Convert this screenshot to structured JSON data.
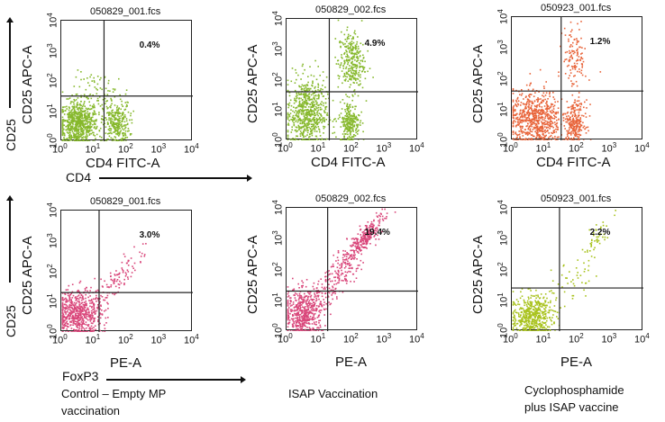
{
  "outer_labels": {
    "y_row1": "CD25",
    "x_row1": "CD4",
    "y_row2": "CD25",
    "x_row2": "FoxP3"
  },
  "captions": {
    "col1": [
      "Control –  Empty MP",
      "vaccination"
    ],
    "col2": [
      "ISAP Vaccination"
    ],
    "col3": [
      "Cyclophosphamide",
      "plus ISAP vaccine"
    ]
  },
  "chart_data": [
    {
      "type": "scatter",
      "title": "050829_001.fcs",
      "xlabel": "CD4 FITC-A",
      "ylabel": "CD25 APC-A",
      "annotation": "0.4%",
      "xlim": [
        0,
        4
      ],
      "ylim": [
        0,
        4
      ],
      "x_scale": "log10",
      "tick_base": "10",
      "tick_exponents": [
        "0",
        "1",
        "2",
        "3",
        "4"
      ],
      "gate": {
        "x": 1.3,
        "y": 1.5
      },
      "color": "#86b82c",
      "clusters": [
        {
          "cx": 0.5,
          "cy": 0.6,
          "sx": 0.3,
          "sy": 0.38,
          "n": 700
        },
        {
          "cx": 1.65,
          "cy": 0.6,
          "sx": 0.2,
          "sy": 0.35,
          "n": 300
        },
        {
          "cx": 1.2,
          "cy": 1.6,
          "sx": 0.45,
          "sy": 0.35,
          "n": 80
        }
      ]
    },
    {
      "type": "scatter",
      "title": "050829_002.fcs",
      "xlabel": "CD4 FITC-A",
      "ylabel": "CD25 APC-A",
      "annotation": "4.9%",
      "xlim": [
        0,
        4
      ],
      "ylim": [
        0,
        4
      ],
      "x_scale": "log10",
      "tick_base": "10",
      "tick_exponents": [
        "0",
        "1",
        "2",
        "3",
        "4"
      ],
      "gate": {
        "x": 1.3,
        "y": 1.6
      },
      "color": "#86b82c",
      "clusters": [
        {
          "cx": 0.6,
          "cy": 0.9,
          "sx": 0.3,
          "sy": 0.6,
          "n": 650
        },
        {
          "cx": 1.9,
          "cy": 0.6,
          "sx": 0.15,
          "sy": 0.35,
          "n": 250
        },
        {
          "cx": 1.95,
          "cy": 2.6,
          "sx": 0.2,
          "sy": 0.5,
          "n": 300
        }
      ]
    },
    {
      "type": "scatter",
      "title": "050923_001.fcs",
      "xlabel": "CD4 FITC-A",
      "ylabel": "CD25 APC-A",
      "annotation": "1.2%",
      "xlim": [
        0,
        4
      ],
      "ylim": [
        0,
        4
      ],
      "x_scale": "log10",
      "tick_base": "10",
      "tick_exponents": [
        "0",
        "1",
        "2",
        "3",
        "4"
      ],
      "gate": {
        "x": 1.5,
        "y": 1.6
      },
      "color": "#e8643a",
      "clusters": [
        {
          "cx": 0.7,
          "cy": 0.7,
          "sx": 0.4,
          "sy": 0.45,
          "n": 700
        },
        {
          "cx": 1.9,
          "cy": 0.6,
          "sx": 0.15,
          "sy": 0.35,
          "n": 250
        },
        {
          "cx": 1.9,
          "cy": 2.7,
          "sx": 0.18,
          "sy": 0.5,
          "n": 120
        }
      ]
    },
    {
      "type": "scatter",
      "title": "050829_001.fcs",
      "xlabel": "PE-A",
      "ylabel": "CD25 APC-A",
      "annotation": "3.0%",
      "xlim": [
        0,
        4
      ],
      "ylim": [
        0,
        4
      ],
      "x_scale": "log10",
      "tick_base": "10",
      "tick_exponents": [
        "0",
        "1",
        "2",
        "3",
        "4"
      ],
      "gate": {
        "x": 1.15,
        "y": 1.3
      },
      "color": "#d9467a",
      "clusters": [
        {
          "cx": 0.5,
          "cy": 0.6,
          "sx": 0.35,
          "sy": 0.4,
          "n": 600
        },
        {
          "cx": 1.6,
          "cy": 1.6,
          "sx": 0.45,
          "sy": 0.45,
          "n": 120
        }
      ]
    },
    {
      "type": "scatter",
      "title": "050829_002.fcs",
      "xlabel": "PE-A",
      "ylabel": "CD25 APC-A",
      "annotation": "19.4%",
      "xlim": [
        0,
        4
      ],
      "ylim": [
        0,
        4
      ],
      "x_scale": "log10",
      "tick_base": "10",
      "tick_exponents": [
        "0",
        "1",
        "2",
        "3",
        "4"
      ],
      "gate": {
        "x": 1.25,
        "y": 1.3
      },
      "color": "#d9467a",
      "clusters": [
        {
          "cx": 0.5,
          "cy": 0.6,
          "sx": 0.3,
          "sy": 0.4,
          "n": 500
        },
        {
          "cx": 1.5,
          "cy": 1.8,
          "sx": 0.5,
          "sy": 0.6,
          "n": 250
        },
        {
          "cx": 2.4,
          "cy": 3.1,
          "sx": 0.25,
          "sy": 0.3,
          "n": 250
        }
      ]
    },
    {
      "type": "scatter",
      "title": "050923_001.fcs",
      "xlabel": "PE-A",
      "ylabel": "CD25 APC-A",
      "annotation": "2.2%",
      "xlim": [
        0,
        4
      ],
      "ylim": [
        0,
        4
      ],
      "x_scale": "log10",
      "tick_base": "10",
      "tick_exponents": [
        "0",
        "1",
        "2",
        "3",
        "4"
      ],
      "gate": {
        "x": 1.45,
        "y": 1.4
      },
      "color": "#a8c21c",
      "clusters": [
        {
          "cx": 0.6,
          "cy": 0.5,
          "sx": 0.3,
          "sy": 0.35,
          "n": 500
        },
        {
          "cx": 1.8,
          "cy": 1.6,
          "sx": 0.6,
          "sy": 0.6,
          "n": 60
        },
        {
          "cx": 2.5,
          "cy": 3.0,
          "sx": 0.25,
          "sy": 0.3,
          "n": 40
        }
      ]
    }
  ]
}
